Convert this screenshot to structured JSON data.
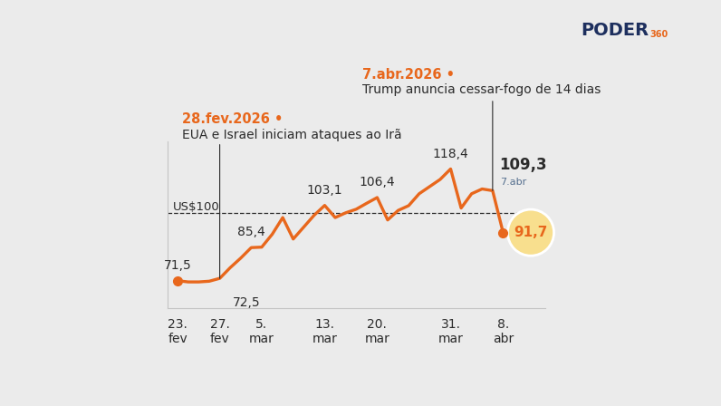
{
  "chart_data": {
    "type": "line",
    "categories": [
      "23.\nfev",
      null,
      null,
      null,
      "27.\nfev",
      null,
      null,
      null,
      "5.\nmar",
      null,
      null,
      null,
      null,
      null,
      "13.\nmar",
      null,
      null,
      null,
      null,
      "20.\nmar",
      null,
      null,
      null,
      null,
      null,
      null,
      "31.\nmar",
      null,
      null,
      null,
      null,
      "8.\nabr"
    ],
    "values": [
      71.5,
      71.0,
      71.0,
      71.3,
      72.5,
      77.0,
      81.0,
      85.4,
      85.6,
      91.0,
      98.0,
      89.0,
      94.0,
      99.0,
      103.1,
      98.0,
      100.0,
      101.5,
      104.0,
      106.4,
      97.0,
      101.0,
      103.0,
      108.0,
      111.0,
      114.0,
      118.4,
      102.0,
      108.0,
      110.0,
      109.3,
      91.7
    ],
    "value_labels": [
      "71,5",
      null,
      null,
      null,
      "72,5",
      null,
      null,
      "85,4",
      null,
      null,
      null,
      null,
      null,
      null,
      "103,1",
      null,
      null,
      null,
      null,
      "106,4",
      null,
      null,
      null,
      null,
      null,
      null,
      "118,4",
      null,
      null,
      null,
      "109,3",
      "91,7"
    ],
    "data_labels": true,
    "color": "#e8671c",
    "ylim": [
      60,
      130
    ],
    "yticks": [],
    "tick_labels": "x",
    "reference_line": {
      "value": 100,
      "label": "US$100"
    },
    "date_label": "7.abr",
    "annotations": [
      {
        "date": "28.fev.2026 •",
        "text": "EUA e Israel iniciam ataques ao Irã"
      },
      {
        "date": "7.abr.2026 •",
        "text": "Trump anuncia cessar-fogo de 14 dias"
      }
    ],
    "logo": "PODER",
    "logo_suffix": "360"
  }
}
